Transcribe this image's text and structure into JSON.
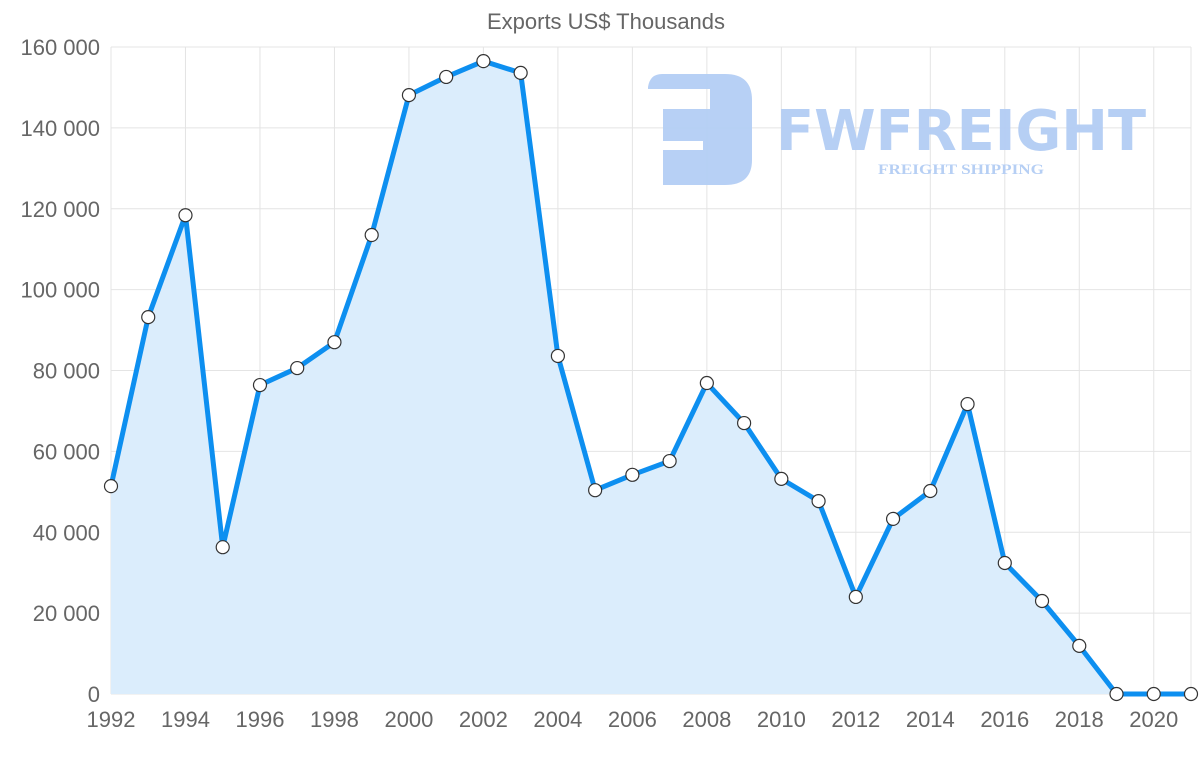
{
  "chart_data": {
    "type": "area",
    "title": "Exports US$ Thousands",
    "xlabel": "",
    "ylabel": "",
    "x": [
      1992,
      1993,
      1994,
      1995,
      1996,
      1997,
      1998,
      1999,
      2000,
      2001,
      2002,
      2003,
      2004,
      2005,
      2006,
      2007,
      2008,
      2009,
      2010,
      2011,
      2012,
      2013,
      2014,
      2015,
      2016,
      2017,
      2018,
      2019,
      2020,
      2021
    ],
    "values": [
      51400,
      93200,
      118400,
      36300,
      76400,
      80600,
      87000,
      113500,
      148100,
      152600,
      156500,
      153600,
      83600,
      50400,
      54200,
      57600,
      76900,
      67000,
      53200,
      47700,
      24000,
      43300,
      50200,
      71700,
      32400,
      23000,
      11900,
      0,
      0,
      0
    ],
    "ylim": [
      0,
      160000
    ],
    "xlim": [
      1992,
      2021
    ],
    "yticks": [
      "0",
      "20 000",
      "40 000",
      "60 000",
      "80 000",
      "100 000",
      "120 000",
      "140 000",
      "160 000"
    ],
    "xticks": [
      "1992",
      "1994",
      "1996",
      "1998",
      "2000",
      "2002",
      "2004",
      "2006",
      "2008",
      "2010",
      "2012",
      "2014",
      "2016",
      "2018",
      "2020"
    ],
    "grid": true,
    "line_color": "#0d8ff0",
    "fill_color": "#dbedfc"
  },
  "watermark": {
    "brand": "FWFREIGHT",
    "tagline": "FREIGHT SHIPPING",
    "color": "#b3cdf4"
  }
}
